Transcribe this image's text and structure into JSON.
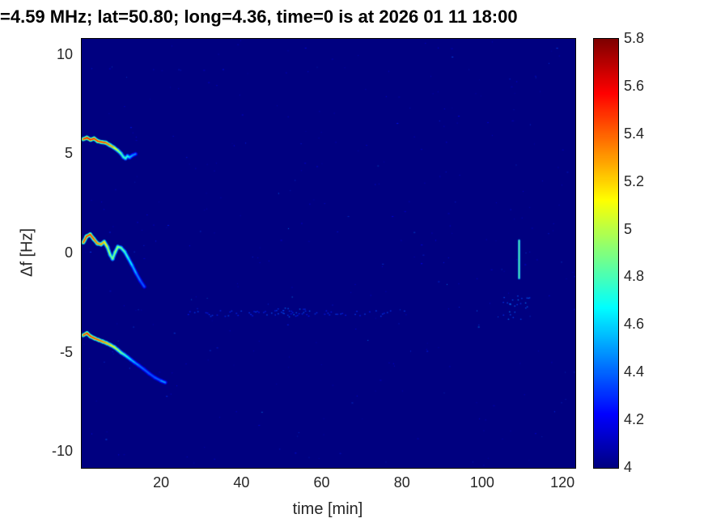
{
  "chart_data": {
    "type": "heatmap",
    "title": "=4.59 MHz;  lat=50.80; long=4.36, time=0 is at 2026 01 11 18:00",
    "xlabel": "time [min]",
    "ylabel": "Δf [Hz]",
    "xlim": [
      0,
      123
    ],
    "ylim": [
      -10.8,
      10.8
    ],
    "xticks": [
      20,
      40,
      60,
      80,
      100,
      120
    ],
    "yticks": [
      10,
      5,
      0,
      -5,
      -10
    ],
    "colorbar": {
      "min": 4,
      "max": 5.8,
      "ticks": [
        4,
        4.2,
        4.4,
        4.6,
        4.8,
        5,
        5.2,
        5.4,
        5.6,
        5.8
      ],
      "colormap": "jet"
    },
    "background_level": 4,
    "colors": {
      "plot_background": "#00008F",
      "axis_text": "#262626",
      "title_text": "#000000"
    },
    "traces": [
      {
        "name": "upper-doppler-trace",
        "points": [
          [
            0.4,
            5.75,
            5.5
          ],
          [
            1.3,
            5.82,
            5.6
          ],
          [
            2.2,
            5.72,
            5.6
          ],
          [
            3.1,
            5.78,
            5.5
          ],
          [
            4.0,
            5.65,
            5.5
          ],
          [
            5.0,
            5.6,
            5.5
          ],
          [
            6.0,
            5.57,
            5.45
          ],
          [
            7.0,
            5.45,
            5.35
          ],
          [
            8.0,
            5.33,
            5.2
          ],
          [
            9.0,
            5.18,
            5.0
          ],
          [
            9.8,
            5.02,
            4.85
          ],
          [
            10.4,
            4.85,
            4.75
          ],
          [
            10.9,
            4.78,
            4.8
          ],
          [
            11.4,
            4.9,
            4.75
          ],
          [
            11.9,
            4.83,
            4.6
          ],
          [
            12.6,
            4.93,
            4.5
          ],
          [
            13.4,
            5.0,
            4.45
          ]
        ]
      },
      {
        "name": "middle-doppler-trace",
        "points": [
          [
            0.4,
            0.55,
            5.4
          ],
          [
            1.2,
            0.85,
            5.5
          ],
          [
            2.1,
            0.95,
            5.5
          ],
          [
            3.0,
            0.72,
            5.45
          ],
          [
            3.9,
            0.5,
            5.35
          ],
          [
            4.8,
            0.45,
            5.3
          ],
          [
            5.6,
            0.58,
            5.25
          ],
          [
            6.4,
            0.32,
            5.05
          ],
          [
            7.1,
            -0.08,
            4.9
          ],
          [
            7.7,
            -0.28,
            4.85
          ],
          [
            8.3,
            0.05,
            4.95
          ],
          [
            9.0,
            0.33,
            5.0
          ],
          [
            9.8,
            0.28,
            4.9
          ],
          [
            10.7,
            0.08,
            4.8
          ],
          [
            11.6,
            -0.25,
            4.7
          ],
          [
            12.6,
            -0.62,
            4.6
          ],
          [
            13.6,
            -1.02,
            4.5
          ],
          [
            14.6,
            -1.38,
            4.42
          ],
          [
            15.6,
            -1.68,
            4.35
          ]
        ]
      },
      {
        "name": "lower-doppler-trace",
        "points": [
          [
            0.4,
            -4.12,
            5.4
          ],
          [
            1.3,
            -4.02,
            5.5
          ],
          [
            2.2,
            -4.18,
            5.5
          ],
          [
            3.2,
            -4.28,
            5.45
          ],
          [
            4.2,
            -4.36,
            5.4
          ],
          [
            5.2,
            -4.44,
            5.35
          ],
          [
            6.2,
            -4.52,
            5.3
          ],
          [
            7.2,
            -4.62,
            5.2
          ],
          [
            8.1,
            -4.72,
            5.1
          ],
          [
            9.0,
            -4.86,
            5.0
          ],
          [
            9.8,
            -5.0,
            4.9
          ],
          [
            10.6,
            -5.1,
            4.8
          ],
          [
            11.4,
            -5.22,
            4.7
          ],
          [
            12.3,
            -5.36,
            4.6
          ],
          [
            13.2,
            -5.5,
            4.52
          ],
          [
            14.2,
            -5.64,
            4.45
          ],
          [
            15.4,
            -5.82,
            4.4
          ],
          [
            16.8,
            -6.05,
            4.38
          ],
          [
            18.3,
            -6.26,
            4.38
          ],
          [
            19.8,
            -6.42,
            4.42
          ],
          [
            20.8,
            -6.5,
            4.55
          ]
        ]
      }
    ],
    "vertical_streak": {
      "t": 109,
      "f_top": 0.65,
      "f_bottom": -1.25,
      "level": 4.85
    },
    "dotted_line": {
      "t_start": 24,
      "t_end": 78,
      "f": -3.0,
      "jitter": 0.3,
      "level": 4.32
    },
    "clusters": [
      {
        "t": 108,
        "f": -2.7,
        "w_min": 7,
        "h_hz": 1.2,
        "count": 26,
        "level": 4.4
      },
      {
        "t": 52,
        "f": -2.95,
        "w_min": 10,
        "h_hz": 0.5,
        "count": 18,
        "level": 4.35
      }
    ],
    "speckle": {
      "seed": 1234,
      "density": 0.0011,
      "level_range": [
        4.12,
        4.55
      ]
    }
  }
}
